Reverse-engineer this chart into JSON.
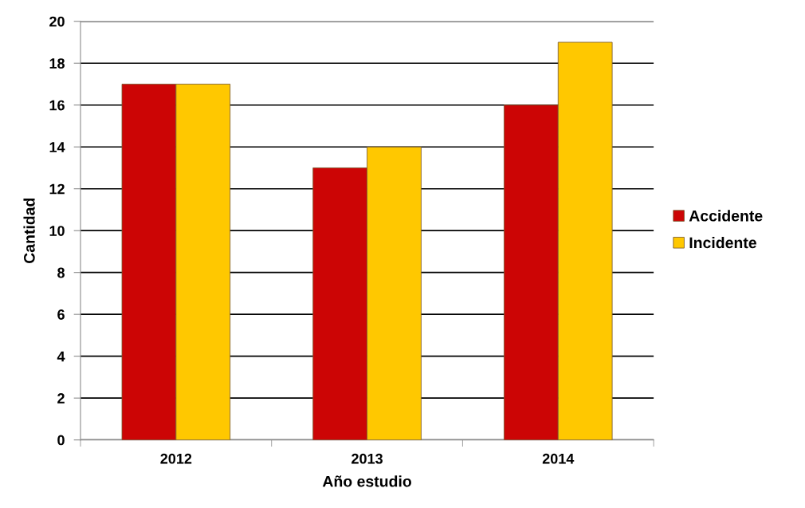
{
  "chart_data": {
    "type": "bar",
    "xlabel": "Año estudio",
    "ylabel": "Cantidad",
    "categories": [
      "2012",
      "2013",
      "2014"
    ],
    "series": [
      {
        "name": "Accidente",
        "color": "#cc0505",
        "values": [
          17,
          13,
          16
        ]
      },
      {
        "name": "Incidente",
        "color": "#ffc800",
        "values": [
          17,
          14,
          19
        ]
      }
    ],
    "ylim": [
      0,
      20
    ],
    "yticks": [
      0,
      2,
      4,
      6,
      8,
      10,
      12,
      14,
      16,
      18,
      20
    ],
    "grid": "y",
    "legend": "right"
  }
}
